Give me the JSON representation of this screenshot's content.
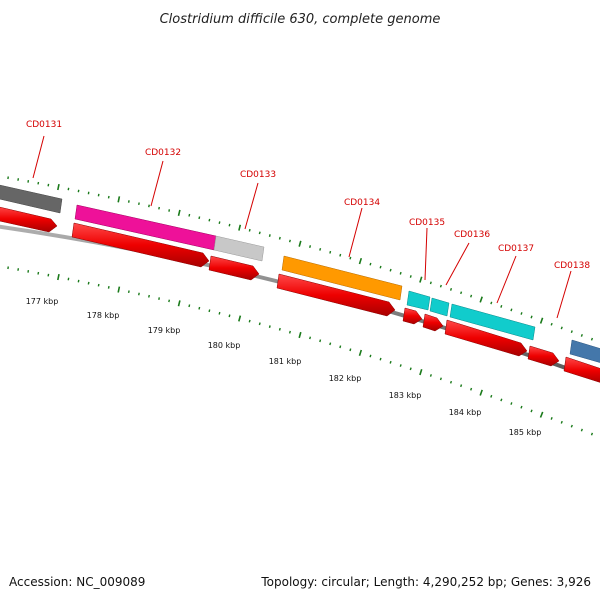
{
  "title": "Clostridium difficile 630, complete genome",
  "footer": {
    "accession": "Accession: NC_009089",
    "summary": "Topology: circular; Length: 4,290,252 bp; Genes: 3,926"
  },
  "colors": {
    "backbone": "#7a7a7a",
    "cds": "#ee0000",
    "tick": "#1a7a1a",
    "label": "#d40000"
  },
  "genes": [
    {
      "id": "CD0131",
      "label": "CD0131",
      "color": "#666666"
    },
    {
      "id": "CD0132",
      "label": "CD0132",
      "color": "#ee1199"
    },
    {
      "id": "CD0133",
      "label": "CD0133",
      "color": "#c8c8c8"
    },
    {
      "id": "CD0134",
      "label": "CD0134",
      "color": "#ff9900"
    },
    {
      "id": "CD0135",
      "label": "CD0135",
      "color": "#11cccc"
    },
    {
      "id": "CD0136",
      "label": "CD0136",
      "color": "#11cccc"
    },
    {
      "id": "CD0137",
      "label": "CD0137",
      "color": "#11cccc"
    },
    {
      "id": "CD0138",
      "label": "CD0138",
      "color": "#4477aa"
    }
  ],
  "kbp_labels": [
    "177 kbp",
    "178 kbp",
    "179 kbp",
    "180 kbp",
    "181 kbp",
    "182 kbp",
    "183 kbp",
    "184 kbp",
    "185 kbp"
  ]
}
